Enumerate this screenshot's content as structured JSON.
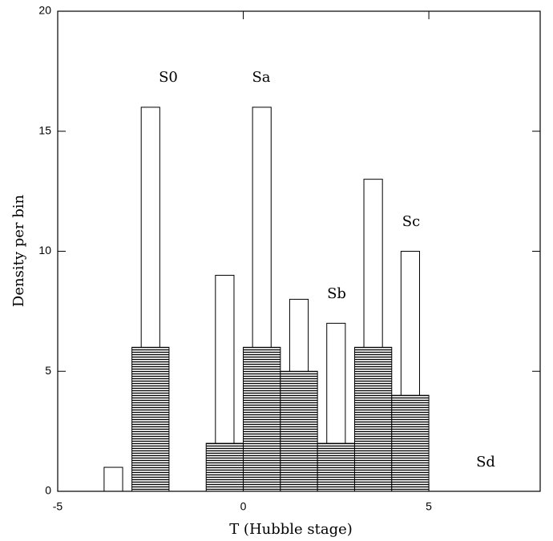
{
  "chart_data": {
    "type": "histogram",
    "xlabel": "T (Hubble stage)",
    "ylabel": "Density per bin",
    "bins": [
      -4,
      -3,
      -2,
      -1,
      0,
      1,
      2,
      3,
      4,
      5
    ],
    "series": [
      {
        "values": [
          1,
          16,
          0,
          9,
          16,
          8,
          7,
          13,
          10
        ],
        "color": "#000000",
        "hatch": false
      },
      {
        "values": [
          0,
          6,
          0,
          2,
          6,
          5,
          2,
          6,
          4
        ],
        "color": "#000000",
        "hatch": true
      }
    ],
    "annotations": [
      "S0",
      "Sa",
      "Sb",
      "Sc",
      "Sd"
    ],
    "xlim": [
      -5,
      8
    ],
    "xticks": [
      -5,
      0,
      5
    ],
    "ylim": [
      0,
      20
    ],
    "yticks": [
      0,
      5,
      10,
      15,
      20
    ]
  }
}
